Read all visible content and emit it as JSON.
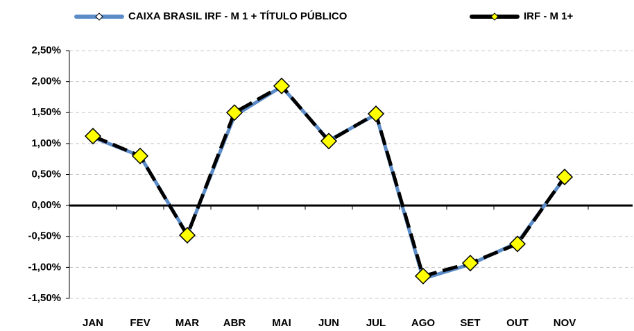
{
  "chart_data": {
    "type": "line",
    "categories": [
      "JAN",
      "FEV",
      "MAR",
      "ABR",
      "MAI",
      "JUN",
      "JUL",
      "AGO",
      "SET",
      "OUT",
      "NOV",
      null
    ],
    "series": [
      {
        "name": "CAIXA BRASIL IRF - M 1 + TÍTULO PÚBLICO",
        "color": "#5b8cc8",
        "values": [
          1.1,
          0.8,
          -0.47,
          1.45,
          1.92,
          1.05,
          1.47,
          -1.18,
          -0.95,
          -0.6,
          0.45,
          null
        ]
      },
      {
        "name": "IRF - M 1+",
        "color": "#000000",
        "marker_color": "#ffff00",
        "values": [
          1.12,
          0.8,
          -0.48,
          1.5,
          1.93,
          1.04,
          1.48,
          -1.14,
          -0.93,
          -0.62,
          0.46,
          null
        ]
      }
    ],
    "ylim": [
      -1.5,
      2.5
    ],
    "yticks": [
      {
        "value": -1.5,
        "label": "-1,50%"
      },
      {
        "value": -1.0,
        "label": "-1,00%"
      },
      {
        "value": -0.5,
        "label": "-0,50%"
      },
      {
        "value": 0,
        "label": "0,00%"
      },
      {
        "value": 0.5,
        "label": "0,50%"
      },
      {
        "value": 1.0,
        "label": "1,00%"
      },
      {
        "value": 1.5,
        "label": "1,50%"
      },
      {
        "value": 2.0,
        "label": "2,00%"
      },
      {
        "value": 2.5,
        "label": "2,50%"
      }
    ],
    "grid": true,
    "legend": "top"
  }
}
